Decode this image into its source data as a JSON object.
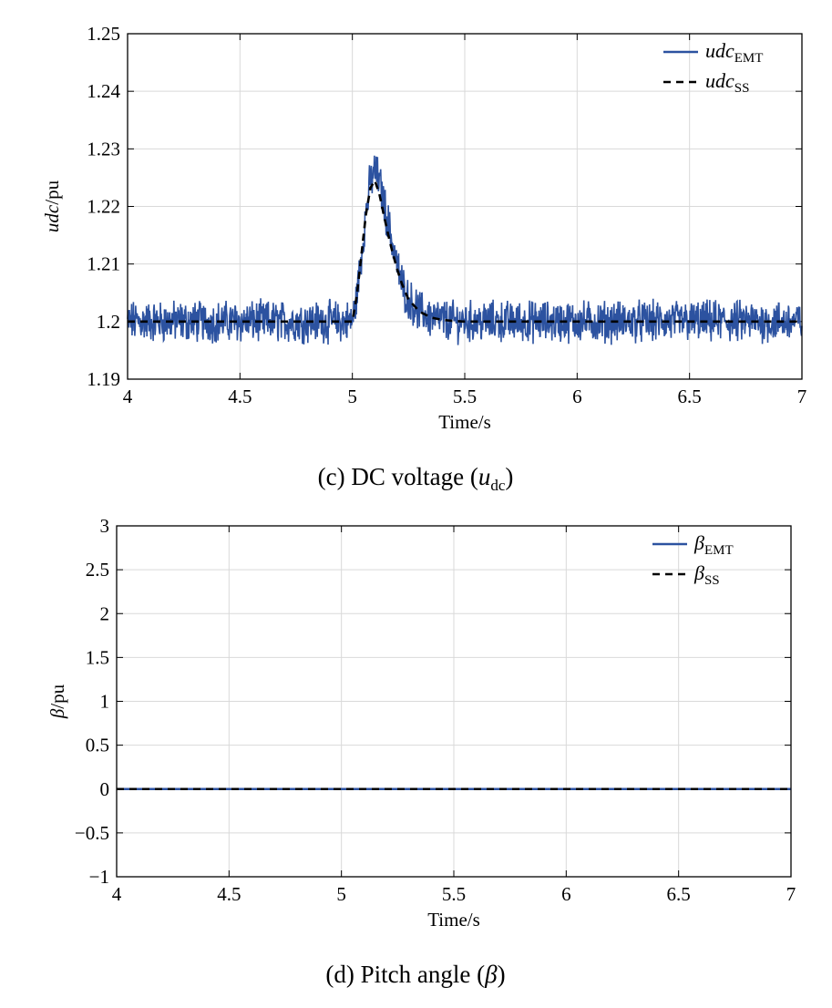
{
  "chart_data": [
    {
      "type": "line",
      "caption_prefix": "(c) DC voltage (",
      "caption_var": "u",
      "caption_sub": "dc",
      "caption_suffix": ")",
      "xlabel": "Time/s",
      "ylabel_var": "udc",
      "ylabel_unit": "/pu",
      "xlim": [
        4,
        7
      ],
      "ylim": [
        1.19,
        1.25
      ],
      "xticks": [
        "4",
        "4.5",
        "5",
        "5.5",
        "6",
        "6.5",
        "7"
      ],
      "yticks": [
        "1.19",
        "1.2",
        "1.21",
        "1.22",
        "1.23",
        "1.24",
        "1.25"
      ],
      "grid": true,
      "legend_position": "top-right",
      "series": [
        {
          "name": "udc",
          "name_sub": "EMT",
          "color": "#2c52a0",
          "style": "solid",
          "noise": true,
          "baseline": 1.2,
          "peak_time": 5.09,
          "peak_value": 1.2245,
          "noise_band": 0.003
        },
        {
          "name": "udc",
          "name_sub": "SS",
          "color": "#000000",
          "style": "dashed",
          "x": [
            4.0,
            5.0,
            5.02,
            5.04,
            5.06,
            5.08,
            5.1,
            5.12,
            5.14,
            5.16,
            5.18,
            5.2,
            5.22,
            5.25,
            5.3,
            5.35,
            5.4,
            5.45,
            5.5,
            7.0
          ],
          "y": [
            1.2,
            1.2,
            1.2045,
            1.2115,
            1.2185,
            1.2232,
            1.2245,
            1.2222,
            1.2185,
            1.215,
            1.2118,
            1.209,
            1.2066,
            1.2038,
            1.2017,
            1.2007,
            1.2003,
            1.2001,
            1.2,
            1.2
          ]
        }
      ]
    },
    {
      "type": "line",
      "caption_prefix": "(d) Pitch angle (",
      "caption_var": "β",
      "caption_sub": "",
      "caption_suffix": ")",
      "xlabel": "Time/s",
      "ylabel_var": "β",
      "ylabel_unit": "/pu",
      "xlim": [
        4,
        7
      ],
      "ylim": [
        -1,
        3
      ],
      "xticks": [
        "4",
        "4.5",
        "5",
        "5.5",
        "6",
        "6.5",
        "7"
      ],
      "yticks": [
        "−1",
        "−0.5",
        "0",
        "0.5",
        "1",
        "1.5",
        "2",
        "2.5",
        "3"
      ],
      "grid": true,
      "legend_position": "top-right",
      "series": [
        {
          "name": "β",
          "name_sub": "EMT",
          "color": "#2c52a0",
          "style": "solid",
          "x": [
            4,
            7
          ],
          "y": [
            0,
            0
          ]
        },
        {
          "name": "β",
          "name_sub": "SS",
          "color": "#000000",
          "style": "dashed",
          "x": [
            4,
            7
          ],
          "y": [
            0,
            0
          ]
        }
      ]
    }
  ]
}
